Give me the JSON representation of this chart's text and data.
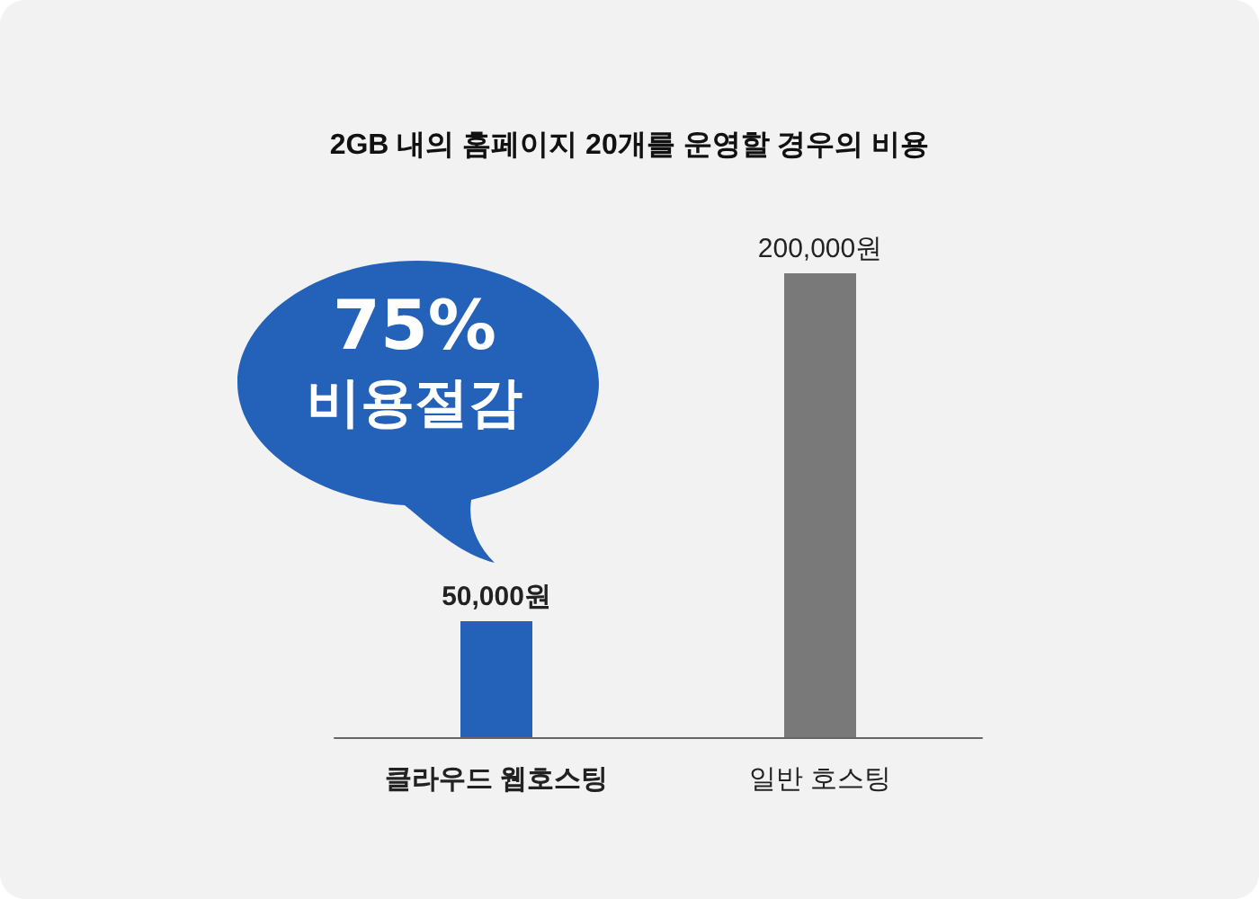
{
  "chart_data": {
    "type": "bar",
    "title": "2GB 내의 홈페이지 20개를 운영할 경우의 비용",
    "categories": [
      "클라우드 웹호스팅",
      "일반 호스팅"
    ],
    "values": [
      50000,
      200000
    ],
    "colors": [
      "#2461b8",
      "#797979"
    ],
    "value_labels": [
      "50,000원",
      "200,000원"
    ],
    "annotations": [
      "75%",
      "비용절감"
    ]
  }
}
